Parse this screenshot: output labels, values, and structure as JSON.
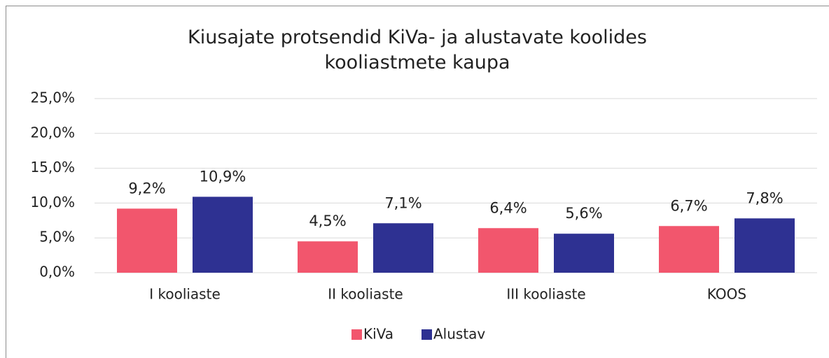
{
  "chart_data": {
    "type": "bar",
    "title": "Kiusajate protsendid KiVa- ja alustavate koolides\nkooliastmete kaupa",
    "categories": [
      "I kooliaste",
      "II kooliaste",
      "III kooliaste",
      "KOOS"
    ],
    "series": [
      {
        "name": "KiVa",
        "color": "#f2566d",
        "values": [
          9.2,
          4.5,
          6.4,
          6.7
        ],
        "value_labels": [
          "9,2%",
          "4,5%",
          "6,4%",
          "6,7%"
        ]
      },
      {
        "name": "Alustav",
        "color": "#2e3192",
        "values": [
          10.9,
          7.1,
          5.6,
          7.8
        ],
        "value_labels": [
          "10,9%",
          "7,1%",
          "5,6%",
          "7,8%"
        ]
      }
    ],
    "ylim": [
      0,
      25
    ],
    "yticks": [
      {
        "value": 0,
        "label": "0,0%"
      },
      {
        "value": 5,
        "label": "5,0%"
      },
      {
        "value": 10,
        "label": "10,0%"
      },
      {
        "value": 15,
        "label": "15,0%"
      },
      {
        "value": 20,
        "label": "20,0%"
      },
      {
        "value": 25,
        "label": "25,0%"
      }
    ],
    "grid": true,
    "legend": "bottom"
  }
}
